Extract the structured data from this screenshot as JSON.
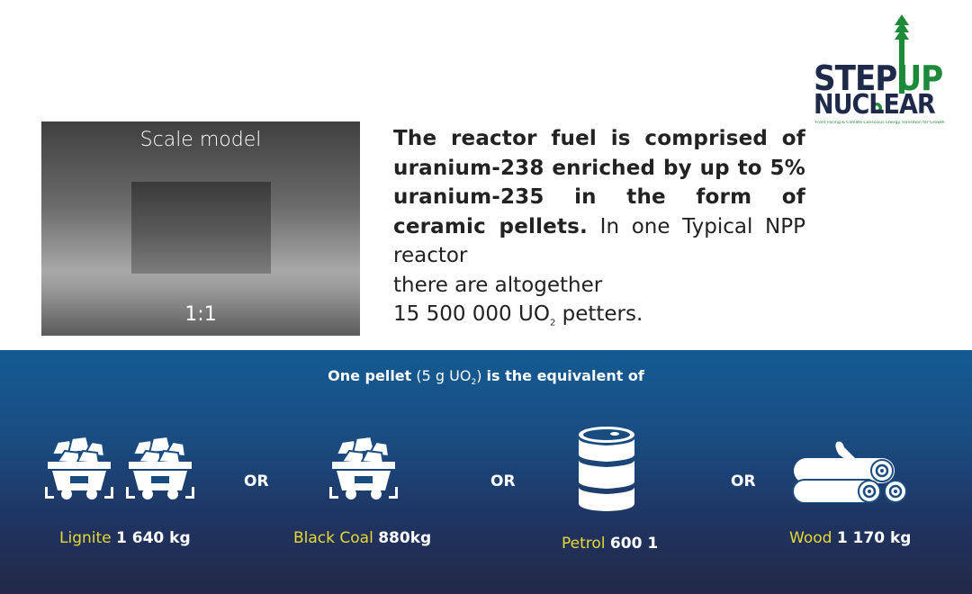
{
  "logo": {
    "step": "STEP",
    "up": "UP",
    "nuclear": "NUCLEAR",
    "tagline": "Front Facing & Climate Conscious Energy Transition for Growth"
  },
  "scale_model": {
    "title": "Scale model",
    "ratio": "1:1"
  },
  "description": {
    "bold": "The reactor fuel is comprised of uranium-238 enriched by up to 5% uranium-235 in the form of ceramic pellets.",
    "normal_a": "In one Typical NPP reactor",
    "normal_b": "there are altogether",
    "normal_c": "15 500 000 UO",
    "normal_sub": "2",
    "normal_d": " petters."
  },
  "equivalent": {
    "title_bold": "One pellet",
    "title_paren_open": "(5 g UO",
    "title_sub": "2",
    "title_paren_close": ")",
    "title_rest": "is the equivalent of",
    "or_label": "OR",
    "items": [
      {
        "name": "Lignite",
        "value": "1 640 kg",
        "icon": "coal-cart-icon"
      },
      {
        "name": "Black Coal",
        "value": "880kg",
        "icon": "coal-cart-icon"
      },
      {
        "name": "Petrol",
        "value": "600 1",
        "icon": "oil-barrel-icon"
      },
      {
        "name": "Wood",
        "value": "1 170 kg",
        "icon": "wood-logs-icon"
      }
    ]
  },
  "colors": {
    "accent_yellow": "#e7d935",
    "band_top": "#135b93",
    "band_bottom": "#232848",
    "logo_green": "#1d8a3a",
    "logo_navy": "#1f2a4a"
  }
}
